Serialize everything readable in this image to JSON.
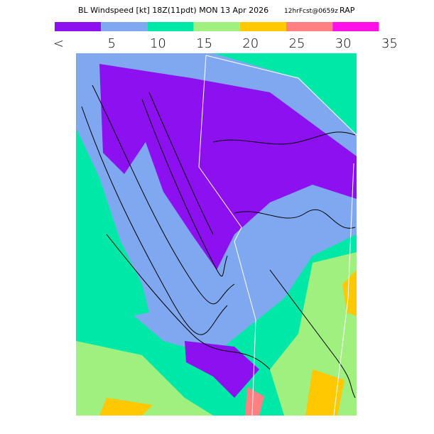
{
  "header": {
    "title": "BL Windspeed [kt] 18Z(11pdt) MON 13 Apr 2026",
    "forecast": "12hrFcst@0659z",
    "model": "RAP"
  },
  "legend": {
    "colors": [
      "#8c10f0",
      "#80a8f0",
      "#00e8a8",
      "#a0f080",
      "#ffc800",
      "#ff8080",
      "#ff10e8"
    ],
    "labels": [
      "<",
      "5",
      "10",
      "15",
      "20",
      "25",
      "30",
      "35"
    ]
  }
}
